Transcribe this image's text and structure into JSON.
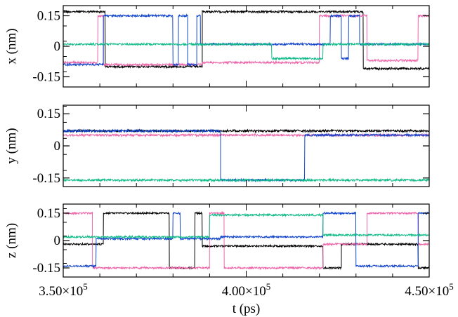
{
  "chart_data": {
    "type": "line",
    "xlabel": "t (ps)",
    "x_tick_labels": [
      {
        "value": 350000,
        "mantissa": "3.50×10",
        "exp": "5"
      },
      {
        "value": 400000,
        "mantissa": "4.00×10",
        "exp": "5"
      },
      {
        "value": 450000,
        "mantissa": "4.50×10",
        "exp": "5"
      }
    ],
    "xlim": [
      350000,
      450000
    ],
    "series_colors": [
      "#000000",
      "#ee66aa",
      "#1144cc",
      "#11bb88"
    ],
    "noise_amplitude": 0.006,
    "panels": [
      {
        "ylabel": "x (nm)",
        "ylim": [
          -0.2,
          0.2
        ],
        "y_tick_labels": [
          {
            "value": 0.15,
            "label": "0.15"
          },
          {
            "value": 0,
            "label": "0"
          },
          {
            "value": -0.15,
            "label": "-0.15"
          }
        ],
        "series": [
          {
            "color": "#000000",
            "segments": [
              {
                "x0": 350000,
                "x1": 361500,
                "y": 0.17
              },
              {
                "x0": 361500,
                "x1": 388000,
                "y": -0.1
              },
              {
                "x0": 388000,
                "x1": 416000,
                "y": 0.17
              },
              {
                "x0": 416000,
                "x1": 432000,
                "y": 0.17
              },
              {
                "x0": 432000,
                "x1": 450000,
                "y": -0.11
              }
            ]
          },
          {
            "color": "#ee66aa",
            "segments": [
              {
                "x0": 350000,
                "x1": 359500,
                "y": -0.08
              },
              {
                "x0": 359500,
                "x1": 361000,
                "y": 0.15
              },
              {
                "x0": 361000,
                "x1": 388000,
                "y": -0.09
              },
              {
                "x0": 388000,
                "x1": 420000,
                "y": -0.08
              },
              {
                "x0": 420000,
                "x1": 433000,
                "y": 0.15
              },
              {
                "x0": 433000,
                "x1": 447000,
                "y": -0.07
              },
              {
                "x0": 447000,
                "x1": 450000,
                "y": 0.15
              }
            ]
          },
          {
            "color": "#1144cc",
            "segments": [
              {
                "x0": 350000,
                "x1": 361000,
                "y": -0.09
              },
              {
                "x0": 361000,
                "x1": 380000,
                "y": 0.15
              },
              {
                "x0": 380000,
                "x1": 381500,
                "y": -0.09
              },
              {
                "x0": 381500,
                "x1": 384000,
                "y": 0.15
              },
              {
                "x0": 384000,
                "x1": 386500,
                "y": -0.09
              },
              {
                "x0": 386500,
                "x1": 387500,
                "y": 0.15
              },
              {
                "x0": 387500,
                "x1": 423000,
                "y": 0.01
              },
              {
                "x0": 423000,
                "x1": 426000,
                "y": 0.15
              },
              {
                "x0": 426000,
                "x1": 428000,
                "y": -0.06
              },
              {
                "x0": 428000,
                "x1": 431000,
                "y": 0.15
              },
              {
                "x0": 431000,
                "x1": 450000,
                "y": 0.01
              }
            ]
          },
          {
            "color": "#11bb88",
            "segments": [
              {
                "x0": 350000,
                "x1": 407000,
                "y": 0.01
              },
              {
                "x0": 407000,
                "x1": 421000,
                "y": -0.06
              },
              {
                "x0": 421000,
                "x1": 450000,
                "y": 0.01
              }
            ]
          }
        ]
      },
      {
        "ylabel": "y (nm)",
        "ylim": [
          -0.19,
          0.19
        ],
        "y_tick_labels": [
          {
            "value": 0.15,
            "label": "0.15"
          },
          {
            "value": 0,
            "label": "0"
          },
          {
            "value": -0.15,
            "label": "-0.15"
          }
        ],
        "series": [
          {
            "color": "#000000",
            "segments": [
              {
                "x0": 350000,
                "x1": 450000,
                "y": 0.07
              }
            ]
          },
          {
            "color": "#ee66aa",
            "segments": [
              {
                "x0": 350000,
                "x1": 450000,
                "y": 0.05
              }
            ]
          },
          {
            "color": "#1144cc",
            "segments": [
              {
                "x0": 350000,
                "x1": 393000,
                "y": 0.07
              },
              {
                "x0": 393000,
                "x1": 416000,
                "y": -0.16
              },
              {
                "x0": 416000,
                "x1": 450000,
                "y": 0.05
              }
            ]
          },
          {
            "color": "#11bb88",
            "segments": [
              {
                "x0": 350000,
                "x1": 450000,
                "y": -0.16
              }
            ]
          }
        ]
      },
      {
        "ylabel": "z (nm)",
        "ylim": [
          -0.2,
          0.2
        ],
        "y_tick_labels": [
          {
            "value": 0.15,
            "label": "0.15"
          },
          {
            "value": 0,
            "label": "0"
          },
          {
            "value": -0.15,
            "label": "-0.15"
          }
        ],
        "series": [
          {
            "color": "#000000",
            "segments": [
              {
                "x0": 350000,
                "x1": 361000,
                "y": -0.02
              },
              {
                "x0": 361000,
                "x1": 379000,
                "y": 0.15
              },
              {
                "x0": 379000,
                "x1": 386000,
                "y": -0.15
              },
              {
                "x0": 386000,
                "x1": 388000,
                "y": 0.15
              },
              {
                "x0": 388000,
                "x1": 421000,
                "y": -0.03
              },
              {
                "x0": 421000,
                "x1": 426000,
                "y": -0.15
              },
              {
                "x0": 426000,
                "x1": 447000,
                "y": -0.02
              },
              {
                "x0": 447000,
                "x1": 450000,
                "y": -0.15
              }
            ]
          },
          {
            "color": "#ee66aa",
            "segments": [
              {
                "x0": 350000,
                "x1": 358000,
                "y": 0.15
              },
              {
                "x0": 358000,
                "x1": 390000,
                "y": -0.15
              },
              {
                "x0": 390000,
                "x1": 394000,
                "y": 0.15
              },
              {
                "x0": 394000,
                "x1": 421000,
                "y": -0.15
              },
              {
                "x0": 421000,
                "x1": 433000,
                "y": -0.02
              },
              {
                "x0": 433000,
                "x1": 447000,
                "y": 0.15
              },
              {
                "x0": 447000,
                "x1": 450000,
                "y": -0.02
              }
            ]
          },
          {
            "color": "#1144cc",
            "segments": [
              {
                "x0": 350000,
                "x1": 359000,
                "y": -0.14
              },
              {
                "x0": 359000,
                "x1": 380000,
                "y": 0.01
              },
              {
                "x0": 380000,
                "x1": 382000,
                "y": 0.15
              },
              {
                "x0": 382000,
                "x1": 393000,
                "y": 0.01
              },
              {
                "x0": 393000,
                "x1": 421000,
                "y": 0.02
              },
              {
                "x0": 421000,
                "x1": 430000,
                "y": 0.15
              },
              {
                "x0": 430000,
                "x1": 447000,
                "y": -0.14
              },
              {
                "x0": 447000,
                "x1": 450000,
                "y": 0.15
              }
            ]
          },
          {
            "color": "#11bb88",
            "segments": [
              {
                "x0": 350000,
                "x1": 390000,
                "y": 0.02
              },
              {
                "x0": 390000,
                "x1": 421000,
                "y": 0.14
              },
              {
                "x0": 421000,
                "x1": 450000,
                "y": 0.03
              }
            ]
          }
        ]
      }
    ]
  }
}
